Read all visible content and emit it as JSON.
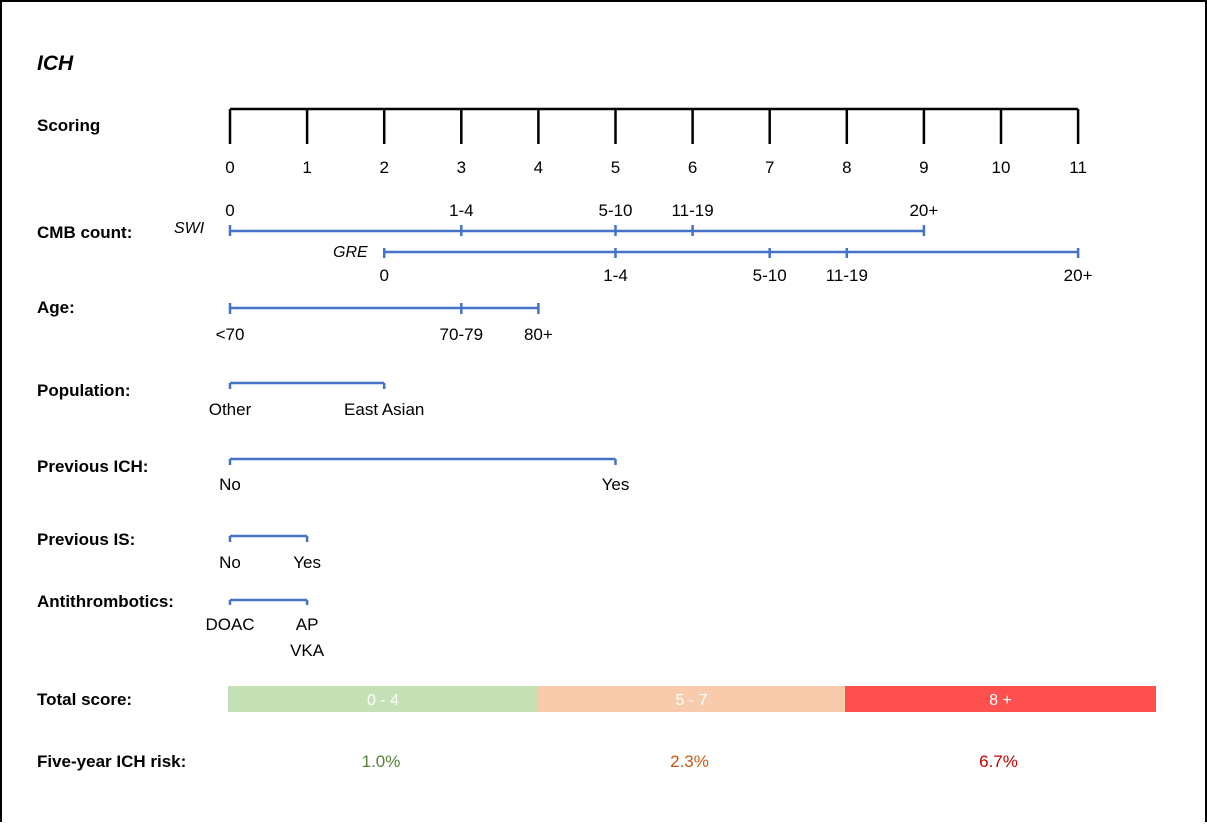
{
  "title": "ICH",
  "scoring": {
    "label": "Scoring",
    "ticks": [
      "0",
      "1",
      "2",
      "3",
      "4",
      "5",
      "6",
      "7",
      "8",
      "9",
      "10",
      "11"
    ]
  },
  "rows": {
    "cmb_count": {
      "label": "CMB count:",
      "swi": {
        "name": "SWI",
        "options": [
          {
            "text": "0",
            "points": 0
          },
          {
            "text": "1-4",
            "points": 3
          },
          {
            "text": "5-10",
            "points": 5
          },
          {
            "text": "11-19",
            "points": 6
          },
          {
            "text": "20+",
            "points": 9
          }
        ]
      },
      "gre": {
        "name": "GRE",
        "options": [
          {
            "text": "0",
            "points": 2
          },
          {
            "text": "1-4",
            "points": 5
          },
          {
            "text": "5-10",
            "points": 7
          },
          {
            "text": "11-19",
            "points": 8
          },
          {
            "text": "20+",
            "points": 11
          }
        ]
      }
    },
    "age": {
      "label": "Age:",
      "options": [
        {
          "text": "<70",
          "points": 0
        },
        {
          "text": "70-79",
          "points": 3
        },
        {
          "text": "80+",
          "points": 4
        }
      ]
    },
    "population": {
      "label": "Population:",
      "options": [
        {
          "text": "Other",
          "points": 0
        },
        {
          "text": "East Asian",
          "points": 2
        }
      ]
    },
    "previous_ich": {
      "label": "Previous ICH:",
      "options": [
        {
          "text": "No",
          "points": 0
        },
        {
          "text": "Yes",
          "points": 5
        }
      ]
    },
    "previous_is": {
      "label": "Previous IS:",
      "options": [
        {
          "text": "No",
          "points": 0
        },
        {
          "text": "Yes",
          "points": 1
        }
      ]
    },
    "antithrombotics": {
      "label": "Antithrombotics:",
      "options": [
        {
          "text": "DOAC",
          "points": 0
        },
        {
          "text": "AP",
          "points": 1
        },
        {
          "text": "VKA",
          "points": 1
        }
      ]
    }
  },
  "total_score": {
    "label": "Total score:",
    "bands": [
      {
        "label": "0 - 4",
        "color": "#c5e0b4"
      },
      {
        "label": "5 - 7",
        "color": "#f8cbad"
      },
      {
        "label": "8 +",
        "color": "#ff5050"
      }
    ]
  },
  "five_year_risk": {
    "label": "Five-year ICH risk:",
    "values": [
      {
        "text": "1.0%",
        "color": "#548235"
      },
      {
        "text": "2.3%",
        "color": "#c55a11"
      },
      {
        "text": "6.7%",
        "color": "#c00000"
      }
    ]
  },
  "colors": {
    "line": "#4472c4",
    "axis": "#000000"
  }
}
